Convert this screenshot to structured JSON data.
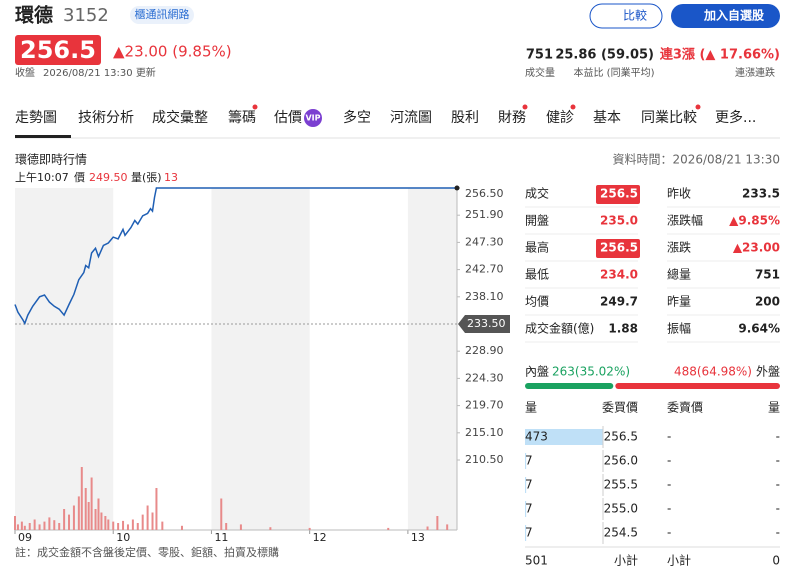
{
  "header": {
    "name": "環德",
    "code": "3152",
    "tag": "櫃通訊網路",
    "compare": "比較",
    "add": "加入自選股",
    "price": "256.5",
    "change": "▲23.00 (9.85%)",
    "status": "收盤",
    "updated": "2026/08/21 13:30 更新"
  },
  "stats": [
    {
      "value": "751",
      "label": "成交量"
    },
    {
      "value": "25.86 (59.05)",
      "label": "本益比 (同業平均)"
    },
    {
      "value": "連3漲 (▲ 17.66%)",
      "label": "連漲連跌"
    }
  ],
  "tabs": [
    "走勢圖",
    "技術分析",
    "成交彙整",
    "籌碼",
    "估價",
    "多空",
    "河流圖",
    "股利",
    "財務",
    "健診",
    "基本",
    "同業比較",
    "更多..."
  ],
  "vip": "VIP",
  "section": {
    "title": "環德即時行情",
    "time": "資料時間：2026/08/21 13:30"
  },
  "chart_data": {
    "type": "line",
    "tooltip": {
      "time": "上午10:07",
      "price_label": "價",
      "price": "249.50",
      "volume_label": "量(張)",
      "volume": "13"
    },
    "x": [
      9.0,
      9.03,
      9.08,
      9.1,
      9.13,
      9.18,
      9.25,
      9.3,
      9.35,
      9.4,
      9.45,
      9.5,
      9.55,
      9.6,
      9.65,
      9.7,
      9.72,
      9.75,
      9.78,
      9.82,
      9.85,
      9.9,
      9.95,
      10.0,
      10.05,
      10.1,
      10.12,
      10.18,
      10.22,
      10.25,
      10.3,
      10.35,
      10.38,
      10.4,
      10.42,
      10.44,
      13.5
    ],
    "series": [
      {
        "name": "成交",
        "color": "#1f5fb4",
        "values": [
          236.8,
          235.5,
          234.2,
          233.6,
          235.0,
          236.5,
          238.1,
          238.4,
          237.2,
          236.5,
          236.0,
          235.0,
          236.8,
          238.5,
          241.0,
          242.2,
          243.4,
          243.0,
          245.5,
          246.3,
          244.9,
          246.8,
          247.2,
          248.2,
          247.9,
          249.5,
          248.5,
          249.8,
          251.0,
          250.4,
          251.8,
          252.2,
          253.0,
          252.6,
          254.9,
          256.5,
          256.5
        ]
      }
    ],
    "volume": {
      "color": "#e88a8a",
      "x": [
        9.0,
        9.03,
        9.07,
        9.1,
        9.15,
        9.2,
        9.25,
        9.3,
        9.35,
        9.4,
        9.45,
        9.5,
        9.55,
        9.6,
        9.65,
        9.68,
        9.72,
        9.75,
        9.78,
        9.82,
        9.85,
        9.88,
        9.92,
        9.95,
        10.0,
        10.05,
        10.1,
        10.15,
        10.2,
        10.25,
        10.3,
        10.35,
        10.4,
        10.44,
        10.5,
        10.7,
        11.1,
        11.15,
        11.3,
        11.6,
        12.0,
        12.8,
        13.2,
        13.3,
        13.4
      ],
      "values": [
        20,
        8,
        12,
        6,
        10,
        15,
        8,
        12,
        18,
        14,
        10,
        30,
        22,
        35,
        48,
        90,
        60,
        40,
        75,
        30,
        45,
        25,
        20,
        15,
        12,
        10,
        13,
        8,
        15,
        10,
        22,
        35,
        25,
        60,
        12,
        6,
        45,
        10,
        8,
        4,
        3,
        3,
        5,
        20,
        8
      ],
      "ylim": [
        0,
        100
      ]
    },
    "reference": {
      "value": 233.5,
      "label": "233.50"
    },
    "xlim": [
      9,
      13.5
    ],
    "xticks": [
      {
        "value": 9,
        "label": "09"
      },
      10,
      11,
      12,
      13
    ],
    "ylim": [
      210.5,
      256.5
    ],
    "yticks": [
      {
        "value": 256.5,
        "label": "256.50"
      },
      {
        "value": 251.9,
        "label": "251.90"
      },
      {
        "value": 247.3,
        "label": "247.30"
      },
      {
        "value": 242.7,
        "label": "242.70"
      },
      {
        "value": 238.1,
        "label": "238.10"
      },
      {
        "value": 228.9,
        "label": "228.90"
      },
      {
        "value": 224.3,
        "label": "224.30"
      },
      {
        "value": 219.7,
        "label": "219.70"
      },
      {
        "value": 215.1,
        "label": "215.10"
      },
      {
        "value": 210.5,
        "label": "210.50"
      }
    ]
  },
  "quote": [
    [
      "成交",
      "256.5"
    ],
    [
      "開盤",
      "235.0"
    ],
    [
      "最高",
      "256.5"
    ],
    [
      "最低",
      "234.0"
    ],
    [
      "均價",
      "249.7"
    ],
    [
      "成交金額(億)",
      "1.88"
    ],
    [
      "昨收",
      "233.5"
    ],
    [
      "漲跌幅",
      "▲9.85%"
    ],
    [
      "漲跌",
      "▲23.00"
    ],
    [
      "總量",
      "751"
    ],
    [
      "昨量",
      "200"
    ],
    [
      "振幅",
      "9.64%"
    ]
  ],
  "flow": {
    "inner_label": "內盤",
    "inner": "263(35.02%)",
    "outer": "488(64.98%)",
    "outer_label": "外盤",
    "inner_share": 35.02,
    "outer_share": 64.98
  },
  "book": {
    "headers": [
      "量",
      "委買價",
      "委賣價",
      "量"
    ],
    "rows": [
      [
        "473",
        "256.5",
        "-",
        "-"
      ],
      [
        "7",
        "256.0",
        "-",
        "-"
      ],
      [
        "7",
        "255.5",
        "-",
        "-"
      ],
      [
        "7",
        "255.0",
        "-",
        "-"
      ],
      [
        "7",
        "254.5",
        "-",
        "-"
      ]
    ],
    "totals": [
      "501",
      "小計",
      "小計",
      "0"
    ]
  },
  "note": "註：成交金額不含盤後定價、零股、鉅額、拍賣及標購"
}
